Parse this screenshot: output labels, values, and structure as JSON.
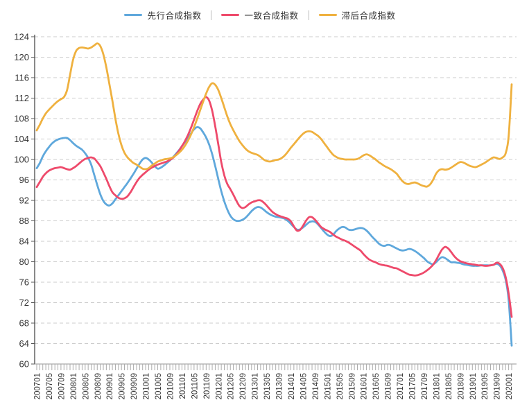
{
  "chart_data": {
    "type": "line",
    "title": "",
    "smooth": true,
    "grid": "horizontal-dashed",
    "legend_position": "top-center",
    "colors": {
      "grid_line": "#cccccc",
      "y_axis_line": "#555555",
      "x_axis_line": "#aaaaaa",
      "tick_text": "#333333",
      "background": "#ffffff"
    },
    "ylim": [
      60,
      124
    ],
    "y_ticks": [
      60,
      64,
      68,
      72,
      76,
      80,
      84,
      88,
      92,
      96,
      100,
      104,
      108,
      112,
      116,
      120,
      124
    ],
    "x_start": "200701",
    "x_end": "202002",
    "x_tick_labels": [
      "200701",
      "200705",
      "200709",
      "200801",
      "200805",
      "200809",
      "200901",
      "200905",
      "200909",
      "201001",
      "201005",
      "201009",
      "201101",
      "201105",
      "201109",
      "201201",
      "201205",
      "201209",
      "201301",
      "201305",
      "201309",
      "201401",
      "201405",
      "201409",
      "201501",
      "201505",
      "201509",
      "201601",
      "201605",
      "201609",
      "201701",
      "201705",
      "201709",
      "201801",
      "201805",
      "201809",
      "201901",
      "201905",
      "201909",
      "202001"
    ],
    "series": [
      {
        "name": "先行合成指数",
        "color": "#5fa8dc",
        "values": [
          98.3,
          99.3,
          100.6,
          101.6,
          102.4,
          103.1,
          103.6,
          103.9,
          104.1,
          104.2,
          104.2,
          103.8,
          103.2,
          102.7,
          102.3,
          101.9,
          101.2,
          100.3,
          99.0,
          97.0,
          95.0,
          93.2,
          91.9,
          91.2,
          91.0,
          91.4,
          92.2,
          93.0,
          93.8,
          94.6,
          95.4,
          96.3,
          97.2,
          98.2,
          99.2,
          100.0,
          100.3,
          100.0,
          99.4,
          98.7,
          98.2,
          98.4,
          98.8,
          99.3,
          99.8,
          100.4,
          101.1,
          101.8,
          102.6,
          103.4,
          104.2,
          105.1,
          105.9,
          106.3,
          106.1,
          105.3,
          104.3,
          102.9,
          101.0,
          98.7,
          96.2,
          93.8,
          91.8,
          90.2,
          89.0,
          88.3,
          88.0,
          88.0,
          88.2,
          88.6,
          89.2,
          89.9,
          90.4,
          90.7,
          90.6,
          90.2,
          89.7,
          89.3,
          89.0,
          88.8,
          88.7,
          88.6,
          88.4,
          88.0,
          87.4,
          86.8,
          86.3,
          86.3,
          86.7,
          87.2,
          87.7,
          87.9,
          87.8,
          87.3,
          86.6,
          85.9,
          85.3,
          85.0,
          85.3,
          86.0,
          86.5,
          86.8,
          86.7,
          86.3,
          86.2,
          86.3,
          86.5,
          86.6,
          86.5,
          86.1,
          85.5,
          84.8,
          84.2,
          83.6,
          83.2,
          83.1,
          83.3,
          83.2,
          82.9,
          82.6,
          82.3,
          82.2,
          82.3,
          82.5,
          82.4,
          82.1,
          81.7,
          81.2,
          80.7,
          80.1,
          79.7,
          79.5,
          79.9,
          80.5,
          80.9,
          80.7,
          80.3,
          79.9,
          79.9,
          79.8,
          79.7,
          79.5,
          79.4,
          79.3,
          79.2,
          79.2,
          79.2,
          79.3,
          79.3,
          79.3,
          79.3,
          79.4,
          79.6,
          79.3,
          78.3,
          76.5,
          72.5,
          63.6
        ]
      },
      {
        "name": "一致合成指数",
        "color": "#ee4a6b",
        "values": [
          94.6,
          95.6,
          96.6,
          97.3,
          97.8,
          98.1,
          98.3,
          98.4,
          98.5,
          98.3,
          98.1,
          98.0,
          98.3,
          98.7,
          99.2,
          99.7,
          100.1,
          100.3,
          100.4,
          100.2,
          99.5,
          98.7,
          97.5,
          96.2,
          94.8,
          93.6,
          93.0,
          92.5,
          92.3,
          92.4,
          92.8,
          93.6,
          94.6,
          95.6,
          96.4,
          97.0,
          97.5,
          98.0,
          98.4,
          98.7,
          99.0,
          99.2,
          99.4,
          99.6,
          99.9,
          100.3,
          100.9,
          101.7,
          102.6,
          103.6,
          104.8,
          106.2,
          107.8,
          109.4,
          110.8,
          111.7,
          112.2,
          111.5,
          109.5,
          106.5,
          103.0,
          99.5,
          96.9,
          95.2,
          94.2,
          93.1,
          91.9,
          90.9,
          90.5,
          90.7,
          91.2,
          91.6,
          91.8,
          92.0,
          92.0,
          91.6,
          91.0,
          90.3,
          89.7,
          89.3,
          89.0,
          88.8,
          88.6,
          88.4,
          87.9,
          86.9,
          86.1,
          86.2,
          87.0,
          88.0,
          88.7,
          88.7,
          88.2,
          87.5,
          86.8,
          86.4,
          86.1,
          85.8,
          85.3,
          84.9,
          84.6,
          84.3,
          84.1,
          83.8,
          83.4,
          83.0,
          82.6,
          82.2,
          81.5,
          80.9,
          80.4,
          80.1,
          79.9,
          79.6,
          79.4,
          79.3,
          79.2,
          79.0,
          78.8,
          78.7,
          78.4,
          78.1,
          77.8,
          77.5,
          77.4,
          77.3,
          77.4,
          77.6,
          77.9,
          78.3,
          78.8,
          79.4,
          80.3,
          81.4,
          82.4,
          82.9,
          82.6,
          81.9,
          81.1,
          80.5,
          80.1,
          79.9,
          79.7,
          79.6,
          79.5,
          79.4,
          79.3,
          79.3,
          79.2,
          79.2,
          79.3,
          79.4,
          79.8,
          79.6,
          78.8,
          77.0,
          73.8,
          69.2
        ]
      },
      {
        "name": "滞后合成指数",
        "color": "#efb13f",
        "values": [
          105.7,
          106.8,
          108.0,
          109.0,
          109.7,
          110.3,
          110.9,
          111.4,
          111.8,
          112.2,
          113.5,
          116.5,
          119.5,
          121.2,
          121.8,
          121.9,
          121.8,
          121.7,
          121.9,
          122.3,
          122.7,
          122.2,
          120.6,
          118.0,
          114.8,
          111.5,
          108.0,
          105.0,
          102.8,
          101.3,
          100.4,
          99.8,
          99.3,
          99.0,
          98.6,
          98.2,
          98.1,
          98.3,
          98.8,
          99.2,
          99.6,
          99.8,
          100.0,
          100.1,
          100.2,
          100.4,
          100.8,
          101.3,
          101.9,
          102.7,
          103.7,
          104.9,
          106.3,
          107.9,
          109.6,
          111.3,
          112.9,
          114.2,
          114.9,
          114.6,
          113.6,
          112.0,
          110.2,
          108.4,
          106.9,
          105.7,
          104.6,
          103.6,
          102.8,
          102.1,
          101.6,
          101.3,
          101.1,
          100.9,
          100.5,
          100.0,
          99.7,
          99.6,
          99.7,
          99.9,
          100.0,
          100.3,
          100.8,
          101.5,
          102.3,
          103.0,
          103.7,
          104.4,
          105.0,
          105.4,
          105.5,
          105.4,
          105.0,
          104.6,
          104.0,
          103.2,
          102.4,
          101.6,
          100.9,
          100.5,
          100.2,
          100.1,
          100.0,
          100.0,
          100.0,
          100.0,
          100.1,
          100.4,
          100.8,
          101.0,
          100.8,
          100.4,
          100.0,
          99.5,
          99.1,
          98.7,
          98.4,
          98.1,
          97.7,
          97.2,
          96.4,
          95.7,
          95.3,
          95.2,
          95.4,
          95.5,
          95.3,
          95.0,
          94.8,
          94.7,
          95.1,
          96.0,
          97.2,
          97.9,
          98.1,
          98.0,
          98.1,
          98.4,
          98.8,
          99.2,
          99.5,
          99.4,
          99.1,
          98.8,
          98.6,
          98.5,
          98.7,
          99.0,
          99.3,
          99.7,
          100.1,
          100.4,
          100.3,
          100.1,
          100.4,
          101.2,
          104.5,
          114.7
        ]
      }
    ]
  }
}
